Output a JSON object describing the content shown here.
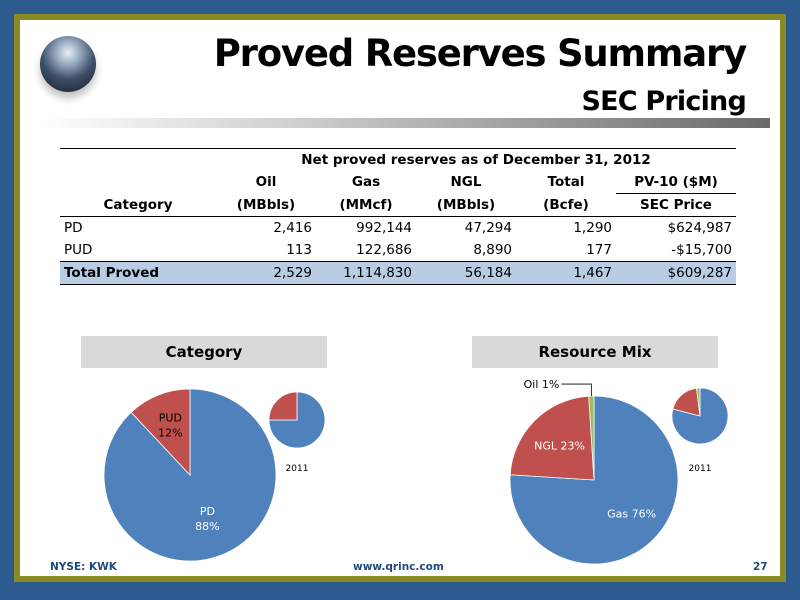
{
  "header": {
    "title": "Proved Reserves Summary",
    "subtitle": "SEC Pricing"
  },
  "table": {
    "group_header": "Net proved reserves as of December 31, 2012",
    "columns": [
      {
        "top": "Oil",
        "bottom": "(MBbls)"
      },
      {
        "top": "Gas",
        "bottom": "(MMcf)"
      },
      {
        "top": "NGL",
        "bottom": "(MBbls)"
      },
      {
        "top": "Total",
        "bottom": "(Bcfe)"
      },
      {
        "top": "PV-10 ($M)",
        "bottom": "SEC Price"
      }
    ],
    "category_header": "Category",
    "rows": [
      {
        "category": "PD",
        "values": [
          "2,416",
          "992,144",
          "47,294",
          "1,290",
          "$624,987"
        ]
      },
      {
        "category": "PUD",
        "values": [
          "113",
          "122,686",
          "8,890",
          "177",
          "-$15,700"
        ]
      },
      {
        "category": "Total Proved",
        "values": [
          "2,529",
          "1,114,830",
          "56,184",
          "1,467",
          "$609,287"
        ]
      }
    ]
  },
  "chart_data": [
    {
      "type": "pie",
      "title": "Category",
      "labels": [
        "PD",
        "PUD"
      ],
      "values": [
        88,
        12
      ],
      "slice_labels": [
        [
          "PD",
          "88%"
        ],
        [
          "PUD",
          "12%"
        ]
      ],
      "colors": [
        "#4f81bd",
        "#c0504d"
      ]
    },
    {
      "type": "pie",
      "title": "",
      "caption": "2011",
      "labels": [
        "PD",
        "PUD"
      ],
      "values": [
        75,
        25
      ],
      "colors": [
        "#4f81bd",
        "#c0504d"
      ]
    },
    {
      "type": "pie",
      "title": "Resource Mix",
      "labels": [
        "Gas",
        "NGL",
        "Oil"
      ],
      "values": [
        76,
        23,
        1
      ],
      "slice_labels": [
        "Gas 76%",
        "NGL 23%",
        "Oil 1%"
      ],
      "colors": [
        "#4f81bd",
        "#c0504d",
        "#9bbb59"
      ]
    },
    {
      "type": "pie",
      "title": "",
      "caption": "2011",
      "labels": [
        "Gas",
        "NGL",
        "Oil"
      ],
      "values": [
        79,
        19,
        2
      ],
      "colors": [
        "#4f81bd",
        "#c0504d",
        "#9bbb59"
      ]
    }
  ],
  "footer": {
    "ticker": "NYSE: KWK",
    "website": "www.qrinc.com",
    "page_number": "27"
  }
}
